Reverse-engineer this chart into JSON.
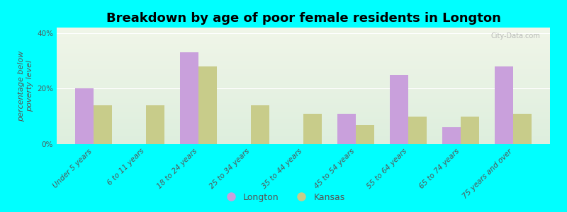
{
  "title": "Breakdown by age of poor female residents in Longton",
  "categories": [
    "Under 5 years",
    "6 to 11 years",
    "18 to 24 years",
    "25 to 34 years",
    "35 to 44 years",
    "45 to 54 years",
    "55 to 64 years",
    "65 to 74 years",
    "75 years and over"
  ],
  "longton_values": [
    20,
    0,
    33,
    0,
    0,
    11,
    25,
    6,
    28
  ],
  "kansas_values": [
    14,
    14,
    28,
    14,
    11,
    7,
    10,
    10,
    11
  ],
  "longton_color": "#c9a0dc",
  "kansas_color": "#c8cc8a",
  "ylabel": "percentage below\npoverty level",
  "ylim": [
    0,
    42
  ],
  "yticks": [
    0,
    20,
    40
  ],
  "ytick_labels": [
    "0%",
    "20%",
    "40%"
  ],
  "background_color": "#00ffff",
  "plot_bg_top": "#f0f5e8",
  "plot_bg_bottom": "#ddeedd",
  "title_fontsize": 13,
  "axis_label_fontsize": 8,
  "tick_fontsize": 7.5,
  "legend_labels": [
    "Longton",
    "Kansas"
  ],
  "watermark": "City-Data.com"
}
